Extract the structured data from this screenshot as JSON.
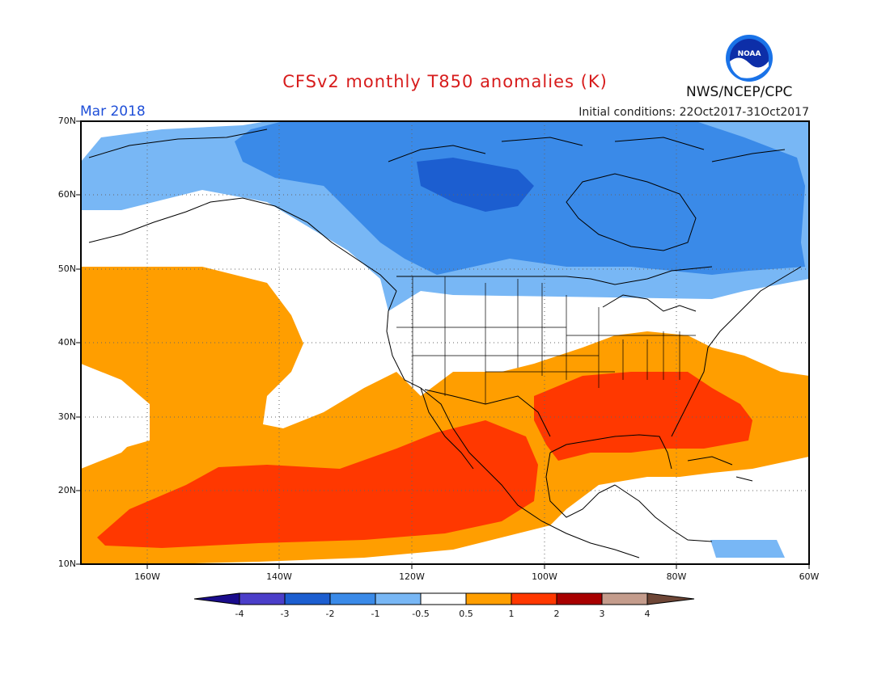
{
  "header": {
    "title": "CFSv2 monthly T850 anomalies (K)",
    "month": "Mar 2018",
    "initial_conditions": "Initial conditions: 22Oct2017-31Oct2017",
    "agency": "NWS/NCEP/CPC",
    "logo_text": "NOAA"
  },
  "axes": {
    "lat_labels": [
      "70N",
      "60N",
      "50N",
      "40N",
      "30N",
      "20N",
      "10N"
    ],
    "lon_labels": [
      "160W",
      "140W",
      "120W",
      "100W",
      "80W",
      "60W"
    ]
  },
  "colorbar": {
    "labels": [
      "-4",
      "-3",
      "-2",
      "-1",
      "-0.5",
      "0.5",
      "1",
      "2",
      "3",
      "4"
    ],
    "colors": [
      "#1a0c8c",
      "#4b3ec9",
      "#1c5ed0",
      "#3a8ae8",
      "#78b7f5",
      "#ffffff",
      "#ff9e00",
      "#ff3800",
      "#a80000",
      "#c49c8c",
      "#6e4636"
    ]
  },
  "map": {
    "lon_range": [
      -170,
      -60
    ],
    "lat_range": [
      10,
      70
    ]
  }
}
